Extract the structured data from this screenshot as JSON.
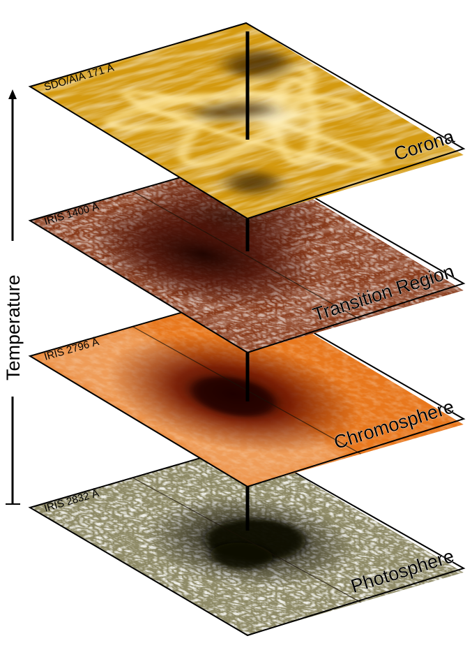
{
  "axis": {
    "label": "Temperature"
  },
  "layers": [
    {
      "key": "corona",
      "instrument": "SDO/AIA 171 Å",
      "name": "Corona",
      "palette": {
        "base": "#d49a10",
        "light": "#ffe9a0",
        "dark": "#3a2200"
      }
    },
    {
      "key": "transition",
      "instrument": "IRIS 1400 Å",
      "name": "Transition Region",
      "palette": {
        "base": "#8a3c1c",
        "light": "#f3d6c6",
        "dark": "#250600"
      }
    },
    {
      "key": "chromo",
      "instrument": "IRIS 2796 Å",
      "name": "Chromosphere",
      "palette": {
        "base": "#e8771c",
        "light": "#fbe1c8",
        "dark": "#3a0600"
      }
    },
    {
      "key": "photo",
      "instrument": "IRIS 2832 Å",
      "name": "Photosphere",
      "palette": {
        "base": "#8e8a66",
        "light": "#ecebd8",
        "dark": "#0f0e06"
      }
    }
  ]
}
